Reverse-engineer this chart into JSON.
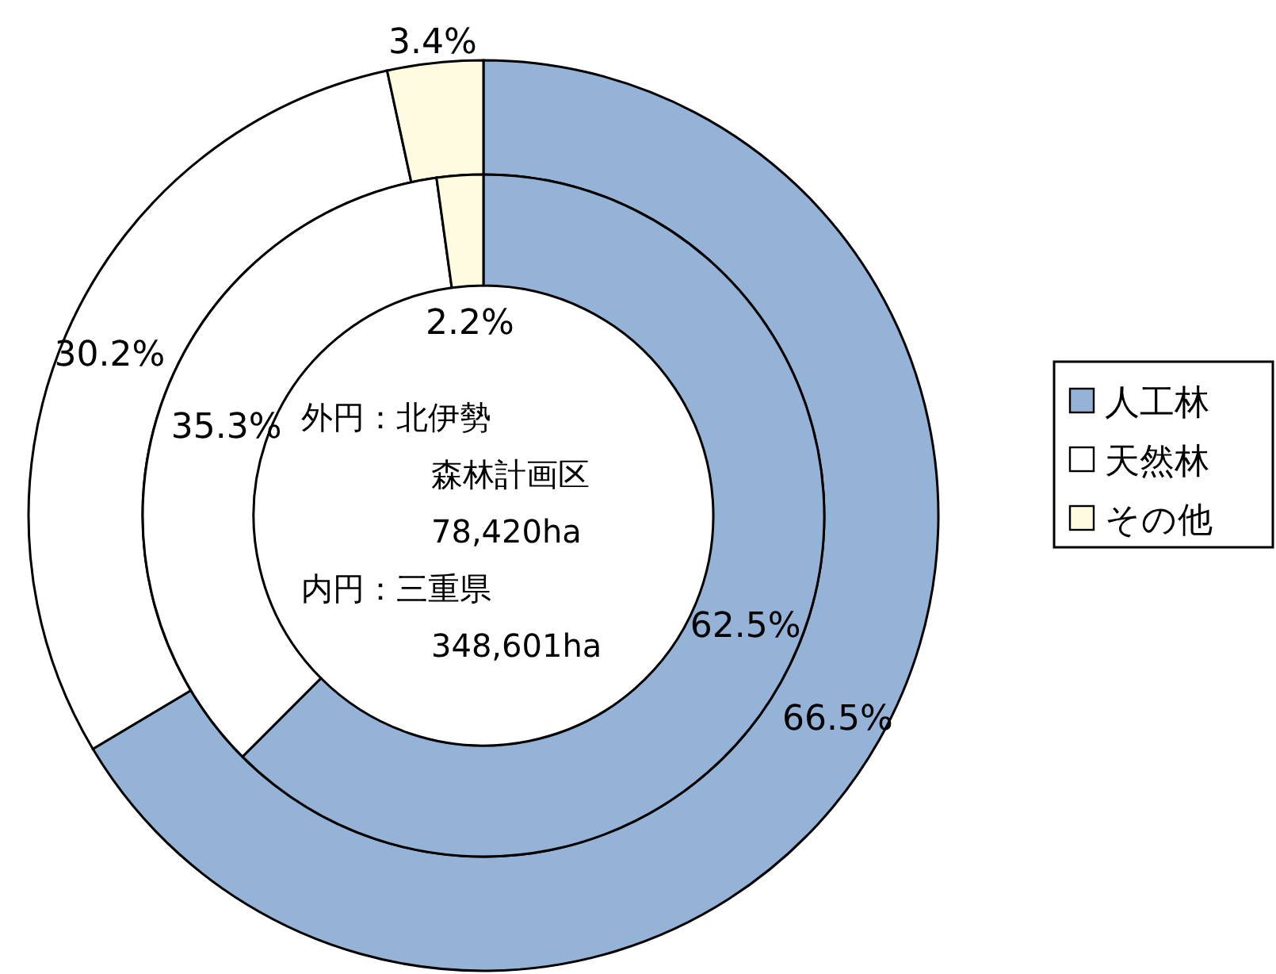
{
  "chart_data": {
    "type": "donut",
    "categories": [
      "人工林",
      "天然林",
      "その他"
    ],
    "series": [
      {
        "colors": [
          "#95b3d7",
          "#ffffff",
          "#fffbe0"
        ],
        "values": [
          66.5,
          30.2,
          3.4
        ],
        "value_labels": [
          "66.5%",
          "30.2%",
          "3.4%"
        ]
      },
      {
        "colors": [
          "#95b3d7",
          "#ffffff",
          "#fffbe0"
        ],
        "values": [
          62.5,
          35.3,
          2.2
        ],
        "value_labels": [
          "62.5%",
          "35.3%",
          "2.2%"
        ]
      }
    ],
    "annotations": [
      "外円：北伊勢",
      "森林計画区",
      "78,420ha",
      "内円：三重県",
      "348,601ha"
    ],
    "legend": "right"
  }
}
